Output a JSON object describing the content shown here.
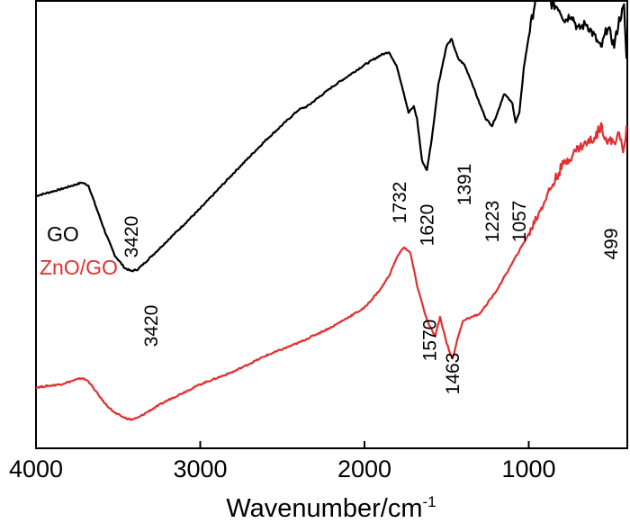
{
  "chart_data": {
    "type": "line",
    "title": "",
    "xlabel": "Wavenumber/cm",
    "xlabel_sup": "-1",
    "ylabel": "",
    "xlim": [
      4000,
      400
    ],
    "ylim": [
      0,
      100
    ],
    "x_ticks": [
      4000,
      3000,
      2000,
      1000
    ],
    "x_tick_labels": [
      "4000",
      "3000",
      "2000",
      "1000"
    ],
    "series": [
      {
        "name": "GO",
        "color": "#000000",
        "x": [
          4000,
          3850,
          3720,
          3680,
          3640,
          3580,
          3520,
          3460,
          3420,
          3380,
          3300,
          3200,
          3000,
          2800,
          2600,
          2400,
          2350,
          2200,
          2000,
          1900,
          1850,
          1800,
          1760,
          1732,
          1700,
          1680,
          1650,
          1620,
          1590,
          1550,
          1500,
          1470,
          1430,
          1391,
          1350,
          1300,
          1260,
          1223,
          1190,
          1150,
          1100,
          1080,
          1057,
          1030,
          1000,
          950,
          900,
          860,
          820,
          780,
          740,
          700,
          650,
          600,
          560,
          520,
          480,
          450,
          420,
          405
        ],
        "values": [
          56.4,
          57.9,
          59.4,
          58.7,
          54.5,
          48.4,
          43.1,
          40.3,
          39.6,
          40.0,
          42.8,
          46.4,
          53.6,
          61.4,
          68.9,
          75.7,
          76.4,
          80.7,
          85.7,
          87.9,
          88.6,
          85.0,
          79.3,
          75.0,
          76.4,
          73.6,
          64.3,
          62.1,
          69.3,
          81.4,
          90.0,
          91.4,
          87.1,
          85.7,
          82.1,
          77.1,
          73.6,
          72.1,
          75.0,
          79.3,
          77.1,
          72.9,
          75.0,
          85.0,
          92.1,
          102.1,
          102.9,
          99.3,
          98.6,
          95.7,
          97.1,
          93.6,
          95.0,
          92.1,
          89.3,
          94.3,
          90.0,
          95.7,
          98.6,
          87.1
        ]
      },
      {
        "name": "ZnO/GO",
        "color": "#e03030",
        "x": [
          4000,
          3850,
          3720,
          3680,
          3640,
          3580,
          3520,
          3460,
          3420,
          3380,
          3300,
          3200,
          3000,
          2800,
          2600,
          2400,
          2200,
          2000,
          1900,
          1850,
          1800,
          1760,
          1720,
          1680,
          1620,
          1600,
          1570,
          1540,
          1520,
          1500,
          1480,
          1463,
          1440,
          1400,
          1300,
          1200,
          1100,
          1000,
          900,
          800,
          700,
          600,
          560,
          520,
          480,
          450,
          420,
          405
        ],
        "values": [
          13.6,
          14.3,
          15.7,
          15.0,
          12.9,
          10.0,
          7.9,
          6.8,
          6.4,
          6.8,
          8.6,
          10.7,
          14.3,
          17.1,
          20.7,
          23.6,
          27.1,
          31.4,
          35.7,
          38.6,
          42.9,
          45.0,
          43.6,
          36.4,
          28.6,
          27.1,
          25.0,
          29.3,
          26.4,
          23.6,
          21.4,
          20.0,
          23.6,
          28.6,
          30.0,
          35.0,
          41.4,
          47.9,
          55.7,
          62.9,
          67.1,
          69.3,
          72.1,
          68.6,
          68.6,
          70.0,
          66.4,
          72.1
        ]
      }
    ],
    "series_labels": [
      "GO",
      "ZnO/GO"
    ],
    "annotations": [
      {
        "text": "3420",
        "x": 3420,
        "series": "GO"
      },
      {
        "text": "1732",
        "x": 1732,
        "series": "GO"
      },
      {
        "text": "1620",
        "x": 1620,
        "series": "GO"
      },
      {
        "text": "1391",
        "x": 1391,
        "series": "GO"
      },
      {
        "text": "1223",
        "x": 1223,
        "series": "GO"
      },
      {
        "text": "1057",
        "x": 1057,
        "series": "GO"
      },
      {
        "text": "499",
        "x": 499,
        "series": "ZnO/GO"
      },
      {
        "text": "3420",
        "x": 3420,
        "series": "ZnO/GO"
      },
      {
        "text": "1570",
        "x": 1570,
        "series": "ZnO/GO"
      },
      {
        "text": "1463",
        "x": 1463,
        "series": "ZnO/GO"
      }
    ],
    "grid": false,
    "legend": "none"
  }
}
